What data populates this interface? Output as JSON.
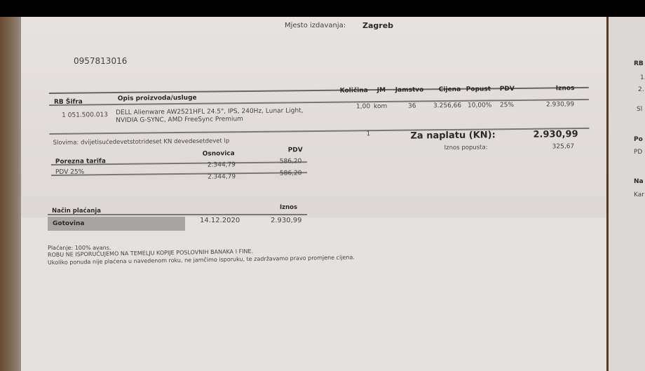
{
  "header": {
    "place_label": "Mjesto izdavanja:",
    "place_value": "Zagreb",
    "phone": "0957813016"
  },
  "items_table": {
    "columns": [
      "RB Šifra",
      "Opis proizvoda/usluge",
      "Količina",
      "JM",
      "Jamstvo",
      "Cijena",
      "Popust",
      "PDV",
      "Iznos"
    ],
    "rows": [
      {
        "rb_sifra": "1 051.500.013",
        "description_line1": "DELL Alienware AW2521HFL 24.5\", IPS, 240Hz, Lunar Light,",
        "description_line2": "NVIDIA G-SYNC, AMD FreeSync Premium",
        "quantity": "1,00",
        "unit": "kom",
        "warranty": "36",
        "price": "3.256,66",
        "discount": "10,00%",
        "vat": "25%",
        "amount": "2.930,99"
      }
    ]
  },
  "totals": {
    "in_words": "Slovima: dvijetisućedevetstotrideset KN devedesetdevet lp",
    "item_count": "1",
    "due_label": "Za naplatu (KN):",
    "due_value": "2.930,99",
    "discount_label": "Iznos popusta:",
    "discount_value": "325,67"
  },
  "tax_table": {
    "columns": [
      "Porezna tarifa",
      "Osnovica",
      "PDV"
    ],
    "row": {
      "rate": "PDV 25%",
      "base": "2.344,79",
      "vat": "586,20"
    },
    "total": {
      "base": "2.344,79",
      "vat": "586,20"
    }
  },
  "payment": {
    "columns": [
      "Način plaćanja",
      "Iznos"
    ],
    "method": "Gotovina",
    "date": "14.12.2020",
    "amount": "2.930,99"
  },
  "notes": [
    "Plaćanje: 100% avans.",
    "ROBU NE ISPORUČUJEMO NA TEMELJU KOPIJE POSLOVNIH BANAKA I FINE.",
    "Ukoliko ponuda nije plaćena u navedenom roku, ne jamčimo isporuku, te zadržavamo pravo promjene cijena."
  ],
  "second_page": {
    "labels": [
      "RB",
      "1.",
      "2.",
      "Sl",
      "Po",
      "PD",
      "Na",
      "Kar"
    ]
  }
}
